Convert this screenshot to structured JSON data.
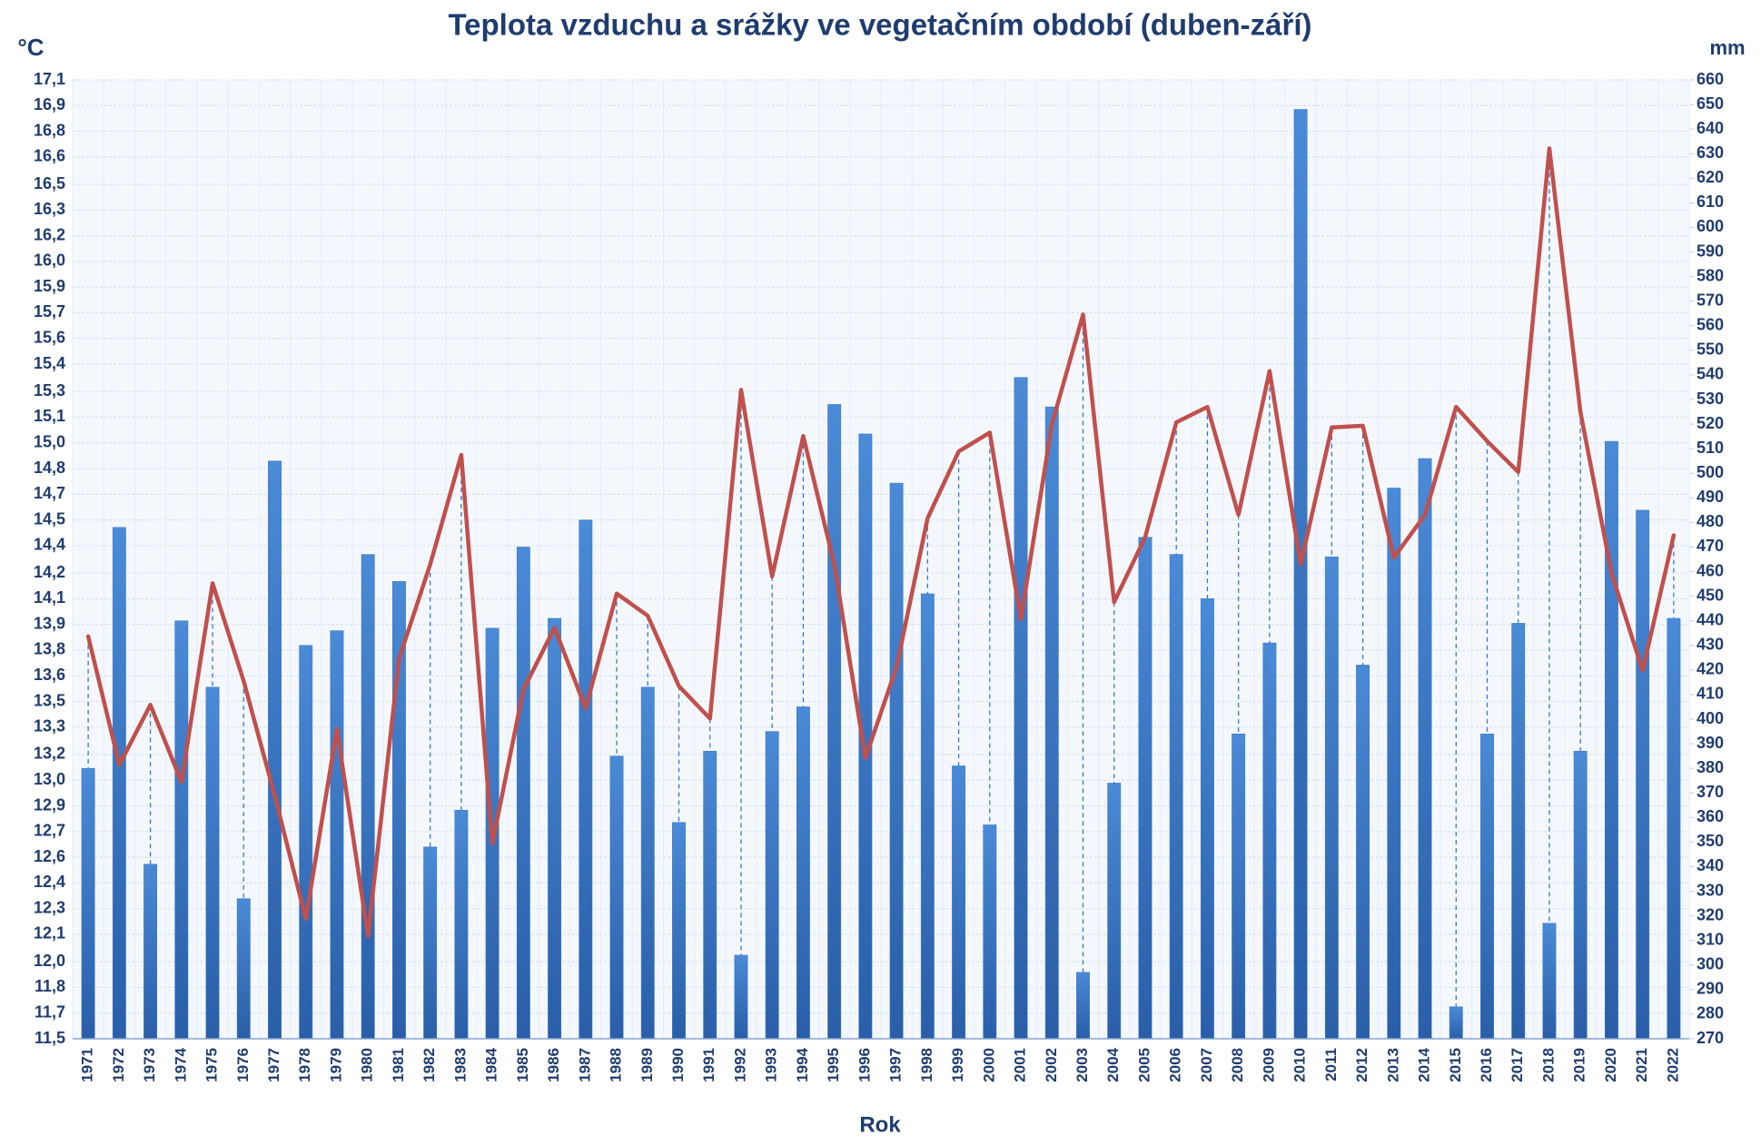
{
  "chart_data": {
    "type": "combo",
    "title": "Teplota vzduchu a srážky ve vegetačním období (duben-září)",
    "y_label": "°C",
    "y2_label": "mm",
    "x_label": "Rok",
    "categories": [
      "1971",
      "1972",
      "1973",
      "1974",
      "1975",
      "1976",
      "1977",
      "1978",
      "1979",
      "1980",
      "1981",
      "1982",
      "1983",
      "1984",
      "1985",
      "1986",
      "1987",
      "1988",
      "1989",
      "1990",
      "1991",
      "1992",
      "1993",
      "1994",
      "1995",
      "1996",
      "1997",
      "1998",
      "1999",
      "2000",
      "2001",
      "2002",
      "2003",
      "2004",
      "2005",
      "2006",
      "2007",
      "2008",
      "2009",
      "2010",
      "2011",
      "2012",
      "2013",
      "2014",
      "2015",
      "2016",
      "2017",
      "2018",
      "2019",
      "2020",
      "2021",
      "2022"
    ],
    "series": [
      {
        "type": "bar",
        "axis": "y2",
        "color": "#3b78c6",
        "values": [
          380,
          478,
          341,
          440,
          413,
          327,
          505,
          430,
          436,
          467,
          456,
          348,
          363,
          437,
          470,
          441,
          481,
          385,
          413,
          358,
          387,
          304,
          395,
          405,
          528,
          516,
          496,
          451,
          381,
          357,
          539,
          527,
          297,
          374,
          474,
          467,
          449,
          394,
          431,
          648,
          466,
          422,
          494,
          506,
          283,
          394,
          439,
          317,
          387,
          513,
          485,
          441
        ]
      },
      {
        "type": "line",
        "color": "#c0504d",
        "values": [
          13.85,
          13.1,
          13.45,
          13.0,
          14.16,
          13.59,
          12.92,
          12.2,
          13.31,
          12.1,
          13.72,
          14.27,
          14.91,
          12.64,
          13.54,
          13.9,
          13.43,
          14.1,
          13.97,
          13.56,
          13.37,
          15.29,
          14.2,
          15.02,
          14.27,
          13.14,
          13.67,
          14.54,
          14.93,
          15.04,
          13.95,
          15.09,
          15.73,
          14.05,
          14.43,
          15.1,
          15.19,
          14.56,
          15.4,
          14.27,
          15.07,
          15.08,
          14.31,
          14.56,
          15.19,
          14.99,
          14.81,
          16.7,
          15.16,
          14.22,
          13.65,
          14.44
        ]
      }
    ],
    "ylim": [
      11.5,
      17.1
    ],
    "yticks": [
      {
        "value": 11.5,
        "label": "11,5"
      },
      {
        "value": 11.65,
        "label": "11,7"
      },
      {
        "value": 11.8,
        "label": "11,8"
      },
      {
        "value": 11.95,
        "label": "12,0"
      },
      {
        "value": 12.11,
        "label": "12,1"
      },
      {
        "value": 12.26,
        "label": "12,3"
      },
      {
        "value": 12.41,
        "label": "12,4"
      },
      {
        "value": 12.56,
        "label": "12,6"
      },
      {
        "value": 12.71,
        "label": "12,7"
      },
      {
        "value": 12.86,
        "label": "12,9"
      },
      {
        "value": 13.01,
        "label": "13,0"
      },
      {
        "value": 13.16,
        "label": "13,2"
      },
      {
        "value": 13.32,
        "label": "13,3"
      },
      {
        "value": 13.47,
        "label": "13,5"
      },
      {
        "value": 13.62,
        "label": "13,6"
      },
      {
        "value": 13.77,
        "label": "13,8"
      },
      {
        "value": 13.92,
        "label": "13,9"
      },
      {
        "value": 14.07,
        "label": "14,1"
      },
      {
        "value": 14.22,
        "label": "14,2"
      },
      {
        "value": 14.38,
        "label": "14,4"
      },
      {
        "value": 14.53,
        "label": "14,5"
      },
      {
        "value": 14.68,
        "label": "14,7"
      },
      {
        "value": 14.83,
        "label": "14,8"
      },
      {
        "value": 14.98,
        "label": "15,0"
      },
      {
        "value": 15.13,
        "label": "15,1"
      },
      {
        "value": 15.28,
        "label": "15,3"
      },
      {
        "value": 15.44,
        "label": "15,4"
      },
      {
        "value": 15.59,
        "label": "15,6"
      },
      {
        "value": 15.74,
        "label": "15,7"
      },
      {
        "value": 15.89,
        "label": "15,9"
      },
      {
        "value": 16.04,
        "label": "16,0"
      },
      {
        "value": 16.19,
        "label": "16,2"
      },
      {
        "value": 16.34,
        "label": "16,3"
      },
      {
        "value": 16.49,
        "label": "16,5"
      },
      {
        "value": 16.65,
        "label": "16,6"
      },
      {
        "value": 16.8,
        "label": "16,8"
      },
      {
        "value": 16.95,
        "label": "16,9"
      },
      {
        "value": 17.1,
        "label": "17,1"
      }
    ],
    "y2lim": [
      270,
      660
    ],
    "y2ticks": [
      270,
      280,
      290,
      300,
      310,
      320,
      330,
      340,
      350,
      360,
      370,
      380,
      390,
      400,
      410,
      420,
      430,
      440,
      450,
      460,
      470,
      480,
      490,
      500,
      510,
      520,
      530,
      540,
      550,
      560,
      570,
      580,
      590,
      600,
      610,
      620,
      630,
      640,
      650,
      660
    ],
    "grid": true,
    "drop_lines": true
  }
}
